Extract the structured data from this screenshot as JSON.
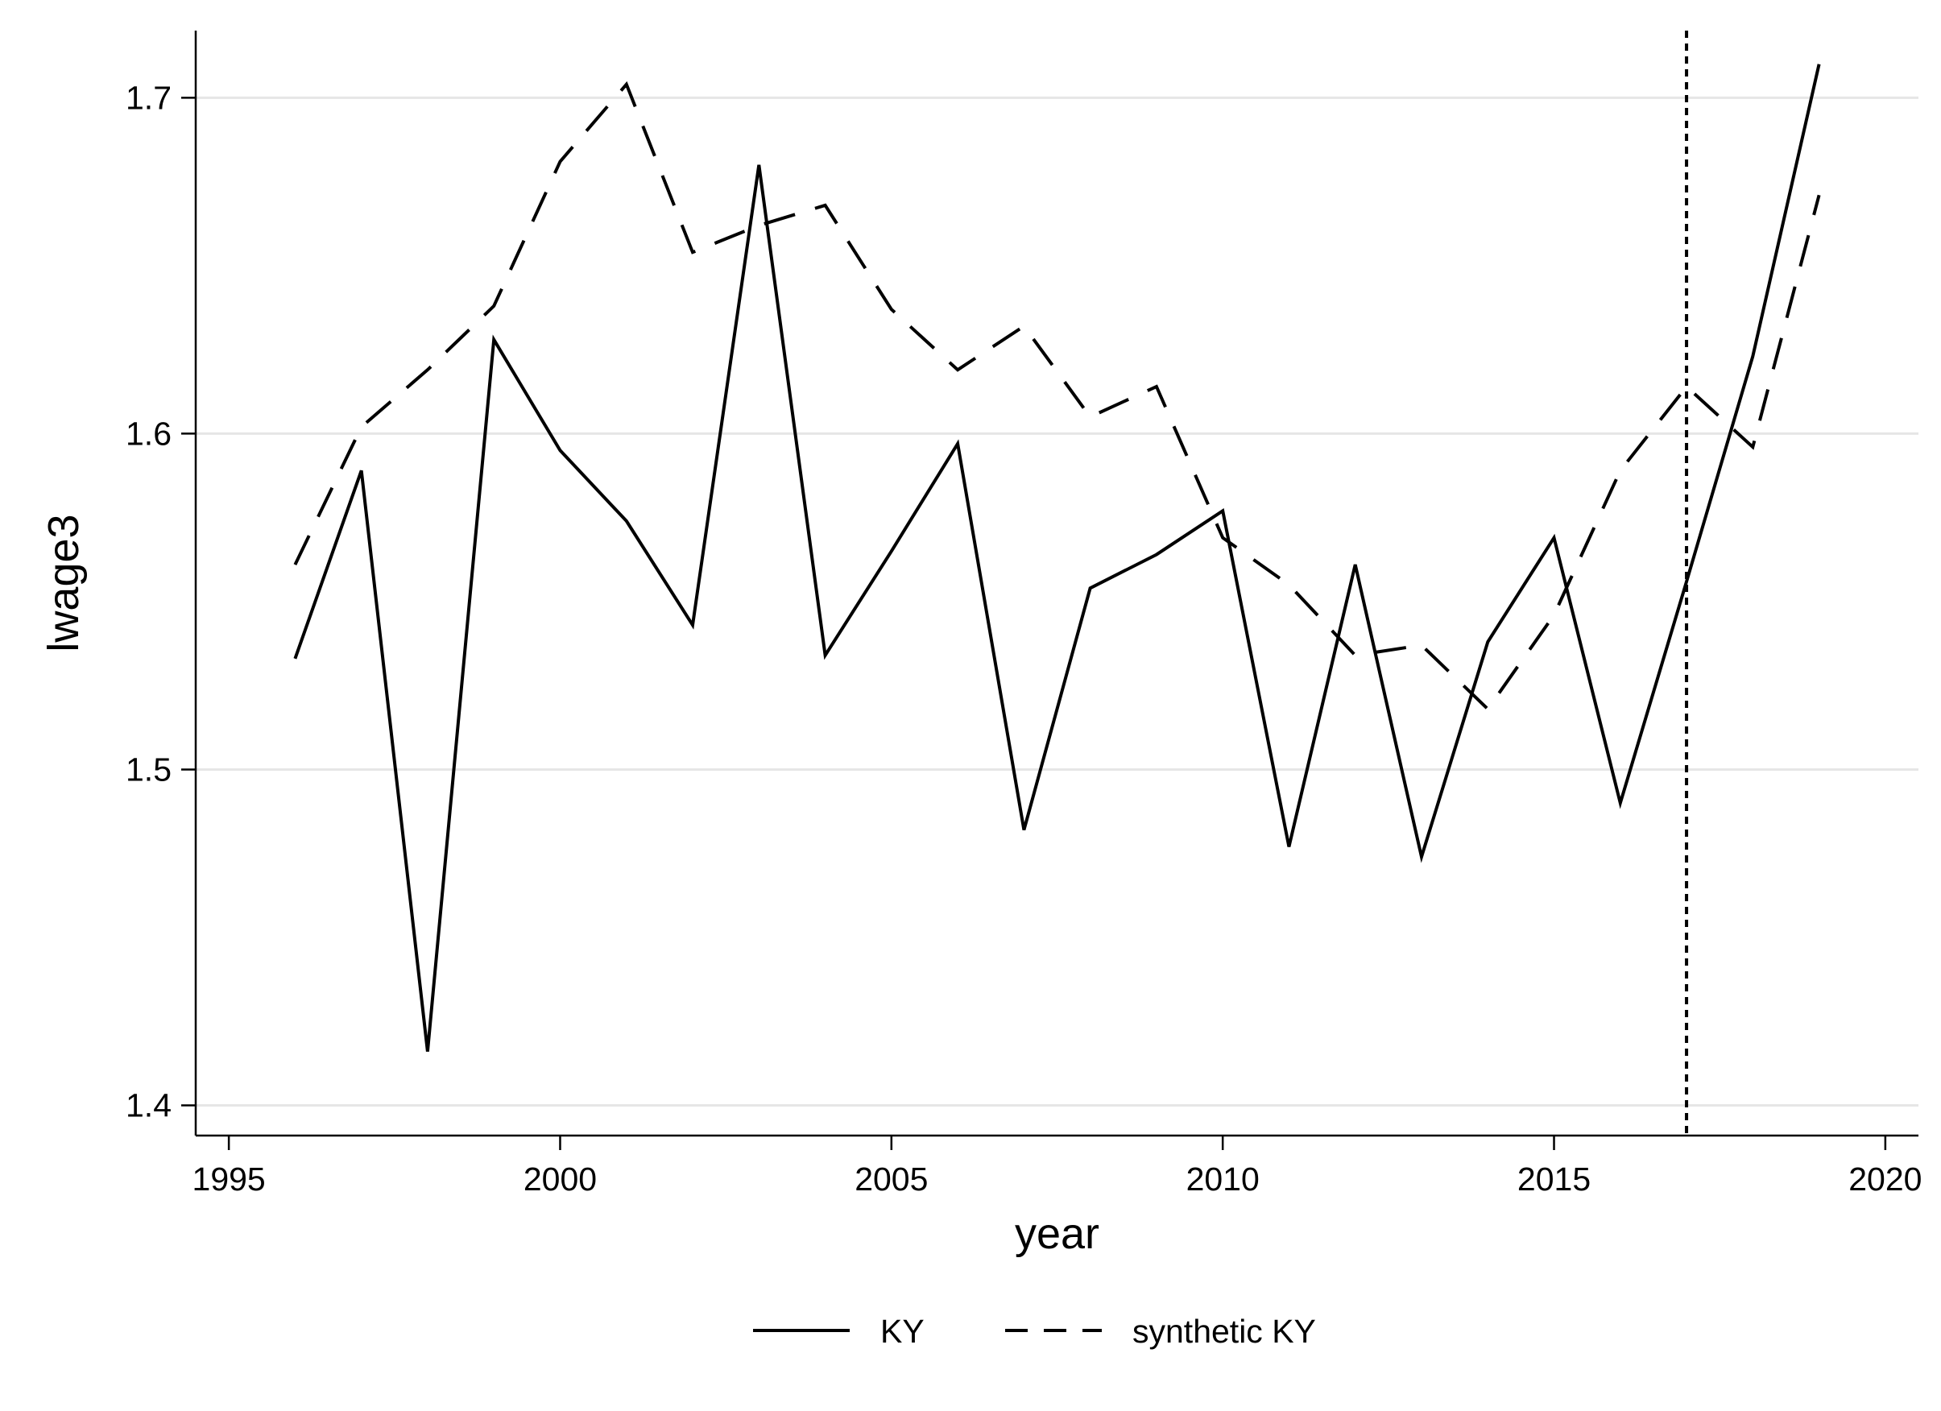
{
  "chart_data": {
    "type": "line",
    "xlabel": "year",
    "ylabel": "lwage3",
    "xlim": [
      1994.5,
      2020.5
    ],
    "ylim": [
      1.391,
      1.72
    ],
    "xticks": [
      1995,
      2000,
      2005,
      2010,
      2015,
      2020
    ],
    "yticks": [
      1.4,
      1.5,
      1.6,
      1.7
    ],
    "ytick_labels": [
      "1.4",
      "1.5",
      "1.6",
      "1.7"
    ],
    "grid": "horizontal",
    "x": [
      1996,
      1997,
      1998,
      1999,
      2000,
      2001,
      2002,
      2003,
      2004,
      2005,
      2006,
      2007,
      2008,
      2009,
      2010,
      2011,
      2012,
      2013,
      2014,
      2015,
      2016,
      2017,
      2018,
      2019
    ],
    "series": [
      {
        "name": "KY",
        "style": "solid",
        "color": "#000000",
        "values": [
          1.533,
          1.589,
          1.416,
          1.628,
          1.595,
          1.574,
          1.543,
          1.68,
          1.534,
          1.565,
          1.597,
          1.482,
          1.554,
          1.564,
          1.577,
          1.477,
          1.561,
          1.474,
          1.538,
          1.569,
          1.49,
          1.556,
          1.623,
          1.71
        ]
      },
      {
        "name": "synthetic KY",
        "style": "dashed",
        "color": "#000000",
        "values": [
          1.561,
          1.602,
          1.619,
          1.638,
          1.681,
          1.704,
          1.654,
          1.662,
          1.668,
          1.637,
          1.619,
          1.632,
          1.605,
          1.614,
          1.569,
          1.555,
          1.534,
          1.537,
          1.518,
          1.546,
          1.589,
          1.614,
          1.596,
          1.671
        ]
      }
    ],
    "vline": {
      "x": 2017,
      "style": "dotted"
    },
    "legend": {
      "placement": "bottom",
      "entries": [
        "KY",
        "synthetic KY"
      ]
    }
  },
  "colors": {
    "line": "#000000",
    "grid": "#e6e6e6",
    "axis": "#000000",
    "background": "#ffffff"
  }
}
